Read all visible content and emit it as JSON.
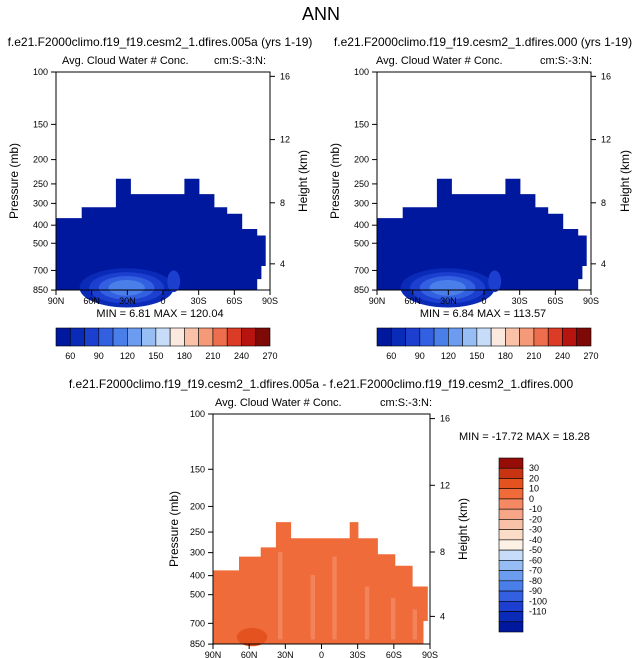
{
  "page_title": "ANN",
  "colors": {
    "top_scale": [
      "#00189e",
      "#0a2ab8",
      "#1c3fd0",
      "#3260e0",
      "#4a7fea",
      "#6b9cf0",
      "#97bdf5",
      "#c7dcf8",
      "#fbe9df",
      "#f9c2a8",
      "#f59a78",
      "#ee6d4c",
      "#dc3b26",
      "#b8140f",
      "#7d0a06"
    ],
    "diff_scale": [
      "#00189e",
      "#0a2ab8",
      "#1c3fd0",
      "#3260e0",
      "#4a7fea",
      "#6b9cf0",
      "#97bdf5",
      "#c7dcf8",
      "#fdf1e6",
      "#fbdcc6",
      "#f9c2a8",
      "#f6a586",
      "#f48964",
      "#f06b3a",
      "#e4521f",
      "#c83312",
      "#960d08"
    ],
    "cloud": "#00189e",
    "diff_field": "#f06b3a"
  },
  "chart_data": [
    {
      "type": "heatmap",
      "title": "f.e21.F2000climo.f19_f19.cesm2_1.dfires.005a (yrs 1-19)",
      "left_label": "Avg. Cloud Water # Conc.",
      "right_label": "cm:S:-3:N:",
      "ylabel": "Pressure (mb)",
      "ylabel_right": "Height (km)",
      "x_ticks": [
        "90N",
        "60N",
        "30N",
        "0",
        "30S",
        "60S",
        "90S"
      ],
      "y_ticks": [
        "100",
        "150",
        "200",
        "250",
        "300",
        "400",
        "500",
        "700",
        "850"
      ],
      "y2_ticks": [
        "16",
        "12",
        "8",
        "4"
      ],
      "min_max": "MIN =  6.81   MAX = 120.04",
      "colorbar_labels": [
        "60",
        "90",
        "120",
        "150",
        "180",
        "210",
        "240",
        "270"
      ]
    },
    {
      "type": "heatmap",
      "title": "f.e21.F2000climo.f19_f19.cesm2_1.dfires.000 (yrs 1-19)",
      "left_label": "Avg. Cloud Water # Conc.",
      "right_label": "cm:S:-3:N:",
      "ylabel": "Pressure (mb)",
      "ylabel_right": "Height (km)",
      "x_ticks": [
        "90N",
        "60N",
        "30N",
        "0",
        "30S",
        "60S",
        "90S"
      ],
      "y_ticks": [
        "100",
        "150",
        "200",
        "250",
        "300",
        "400",
        "500",
        "700",
        "850"
      ],
      "y2_ticks": [
        "16",
        "12",
        "8",
        "4"
      ],
      "min_max": "MIN =  6.84   MAX = 113.57",
      "colorbar_labels": [
        "60",
        "90",
        "120",
        "150",
        "180",
        "210",
        "240",
        "270"
      ]
    },
    {
      "type": "heatmap",
      "title": "f.e21.F2000climo.f19_f19.cesm2_1.dfires.005a - f.e21.F2000climo.f19_f19.cesm2_1.dfires.000",
      "left_label": "Avg. Cloud Water # Conc.",
      "right_label": "cm:S:-3:N:",
      "ylabel": "Pressure (mb)",
      "ylabel_right": "Height (km)",
      "x_ticks": [
        "90N",
        "60N",
        "30N",
        "0",
        "30S",
        "60S",
        "90S"
      ],
      "y_ticks": [
        "100",
        "150",
        "200",
        "250",
        "300",
        "400",
        "500",
        "700",
        "850"
      ],
      "y2_ticks": [
        "16",
        "12",
        "8",
        "4"
      ],
      "min_max": "MIN = -17.72   MAX =  18.28",
      "colorbar_labels": [
        "30",
        "20",
        "10",
        "0",
        "-10",
        "-20",
        "-30",
        "-40",
        "-50",
        "-60",
        "-70",
        "-80",
        "-90",
        "-100",
        "-110"
      ]
    }
  ]
}
